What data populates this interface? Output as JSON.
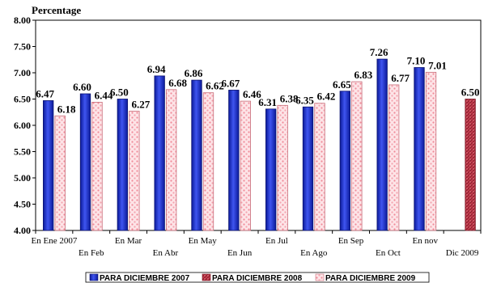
{
  "chart_data": {
    "type": "bar",
    "title": "",
    "ylabel": "Percentage",
    "xlabel": "",
    "ylim": [
      4.0,
      8.0
    ],
    "ytick_labels": [
      "4.00",
      "4.50",
      "5.00",
      "5.50",
      "6.00",
      "6.50",
      "7.00",
      "7.50",
      "8.00"
    ],
    "categories": [
      "En Ene 2007",
      "En Feb",
      "En Mar",
      "En Abr",
      "En May",
      "En Jun",
      "En Jul",
      "En Ago",
      "En Sep",
      "En Oct",
      "En nov",
      "Dic 2009"
    ],
    "series": [
      {
        "name": "PARA DICIEMBRE 2007",
        "values": [
          6.47,
          6.6,
          6.5,
          6.94,
          6.86,
          6.67,
          6.31,
          6.35,
          6.65,
          7.26,
          7.1,
          null
        ],
        "labels": [
          "6.47",
          "6.60",
          "6.50",
          "6.94",
          "6.86",
          "6.67",
          "6.31",
          "6.35",
          "6.65",
          "7.26",
          "7.10",
          ""
        ],
        "color": "#1f2fd6"
      },
      {
        "name": "PARA DICIEMBRE 2008",
        "values": [
          null,
          null,
          null,
          null,
          null,
          null,
          null,
          null,
          null,
          null,
          null,
          6.5
        ],
        "labels": [
          "",
          "",
          "",
          "",
          "",
          "",
          "",
          "",
          "",
          "",
          "",
          "6.50"
        ],
        "color": "#c0394a"
      },
      {
        "name": "PARA DICIEMBRE 2009",
        "values": [
          6.18,
          6.44,
          6.27,
          6.68,
          6.62,
          6.46,
          6.38,
          6.42,
          6.83,
          6.77,
          7.01,
          null
        ],
        "labels": [
          "6.18",
          "6.44",
          "6.27",
          "6.68",
          "6.62",
          "6.46",
          "6.38",
          "6.42",
          "6.83",
          "6.77",
          "7.01",
          ""
        ],
        "color": "#f2b5bd"
      }
    ],
    "grid": false,
    "legend_position": "bottom"
  }
}
